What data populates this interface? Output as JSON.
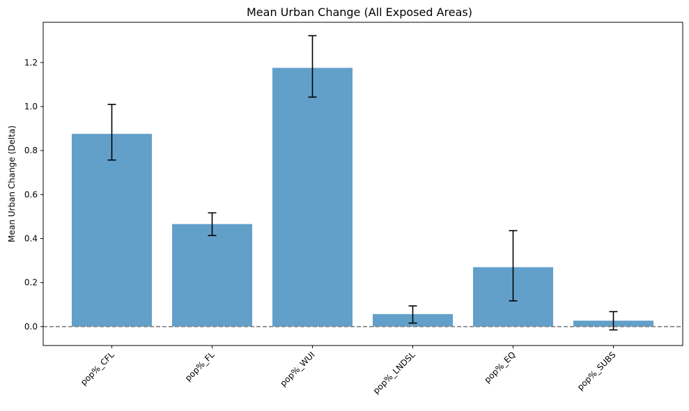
{
  "chart_data": {
    "type": "bar",
    "title": "Mean Urban Change (All Exposed Areas)",
    "xlabel": "",
    "ylabel": "Mean Urban Change (Delta)",
    "categories": [
      "pop%_CFL",
      "pop%_FL",
      "pop%_WUI",
      "pop%_LNDSL",
      "pop%_EQ",
      "pop%_SUBS"
    ],
    "values": [
      0.876,
      0.466,
      1.176,
      0.057,
      0.27,
      0.027
    ],
    "error_low": [
      0.757,
      0.414,
      1.043,
      0.016,
      0.117,
      -0.015
    ],
    "error_high": [
      1.01,
      0.517,
      1.322,
      0.094,
      0.436,
      0.068
    ],
    "ylim": [
      -0.086,
      1.383
    ],
    "yticks": [
      0.0,
      0.2,
      0.4,
      0.6,
      0.8,
      1.0,
      1.2
    ],
    "ytick_labels": [
      "0.0",
      "0.2",
      "0.4",
      "0.6",
      "0.8",
      "1.0",
      "1.2"
    ],
    "reference_line": 0.0,
    "grid": false,
    "colors": {
      "bar": "#62a0ca",
      "error_bar": "#000000",
      "reference_line": "#808080"
    }
  }
}
